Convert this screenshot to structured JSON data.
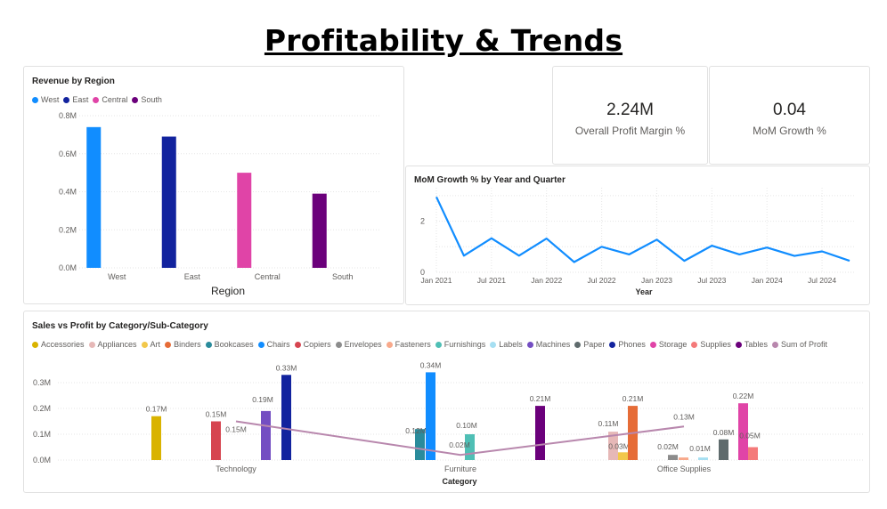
{
  "page": {
    "title": "Profitability & Trends"
  },
  "kpi": [
    {
      "value": "2.24M",
      "label": "Overall Profit Margin %"
    },
    {
      "value": "0.04",
      "label": "MoM Growth %"
    }
  ],
  "chart_data": [
    {
      "id": "region",
      "type": "bar",
      "title": "Revenue by Region",
      "xlabel": "Region",
      "ylabel": "",
      "categories": [
        "West",
        "East",
        "Central",
        "South"
      ],
      "legend": [
        {
          "name": "West",
          "color": "#118dff"
        },
        {
          "name": "East",
          "color": "#12239e"
        },
        {
          "name": "Central",
          "color": "#e044a7"
        },
        {
          "name": "South",
          "color": "#6b007b"
        }
      ],
      "series": [
        {
          "name": "West",
          "values": [
            0.74,
            null,
            null,
            null
          ]
        },
        {
          "name": "East",
          "values": [
            null,
            0.69,
            null,
            null
          ]
        },
        {
          "name": "Central",
          "values": [
            null,
            null,
            0.5,
            null
          ]
        },
        {
          "name": "South",
          "values": [
            null,
            null,
            null,
            0.39
          ]
        }
      ],
      "ylim": [
        0,
        0.8
      ],
      "yticks": [
        "0.0M",
        "0.2M",
        "0.4M",
        "0.6M",
        "0.8M"
      ],
      "grid": true
    },
    {
      "id": "mom",
      "type": "line",
      "title": "MoM Growth % by Year and Quarter",
      "xlabel": "Year",
      "ylabel": "",
      "xticks": [
        "Jan 2021",
        "Jul 2021",
        "Jan 2022",
        "Jul 2022",
        "Jan 2023",
        "Jul 2023",
        "Jan 2024",
        "Jul 2024"
      ],
      "x": [
        "2021 Q1",
        "2021 Q2",
        "2021 Q3",
        "2021 Q4",
        "2022 Q1",
        "2022 Q2",
        "2022 Q3",
        "2022 Q4",
        "2023 Q1",
        "2023 Q2",
        "2023 Q3",
        "2023 Q4",
        "2024 Q1",
        "2024 Q2",
        "2024 Q3",
        "2024 Q4"
      ],
      "series": [
        {
          "color": "#118dff",
          "values": [
            2.95,
            0.65,
            1.33,
            0.65,
            1.32,
            0.4,
            1.0,
            0.7,
            1.28,
            0.45,
            1.04,
            0.7,
            0.97,
            0.64,
            0.82,
            0.45
          ]
        }
      ],
      "ylim": [
        0,
        3.1
      ],
      "yticks": [
        "0",
        "2"
      ],
      "grid": true
    },
    {
      "id": "category",
      "type": "bar",
      "title": "Sales vs Profit by Category/Sub-Category",
      "xlabel": "Category",
      "ylabel": "",
      "categories": [
        "Technology",
        "Furniture",
        "Office Supplies"
      ],
      "legend": [
        {
          "name": "Accessories",
          "color": "#d9b300"
        },
        {
          "name": "Appliances",
          "color": "#e6b8b7"
        },
        {
          "name": "Art",
          "color": "#f2c84b"
        },
        {
          "name": "Binders",
          "color": "#e66c37"
        },
        {
          "name": "Bookcases",
          "color": "#2a8b9b"
        },
        {
          "name": "Chairs",
          "color": "#118dff"
        },
        {
          "name": "Copiers",
          "color": "#d64550"
        },
        {
          "name": "Envelopes",
          "color": "#8c8c8c"
        },
        {
          "name": "Fasteners",
          "color": "#f8a98b"
        },
        {
          "name": "Furnishings",
          "color": "#4fbfb5"
        },
        {
          "name": "Labels",
          "color": "#a6dff2"
        },
        {
          "name": "Machines",
          "color": "#744ec2"
        },
        {
          "name": "Paper",
          "color": "#5f6b6d"
        },
        {
          "name": "Phones",
          "color": "#12239e"
        },
        {
          "name": "Storage",
          "color": "#e044a7"
        },
        {
          "name": "Supplies",
          "color": "#f47a7a"
        },
        {
          "name": "Tables",
          "color": "#6b007b"
        },
        {
          "name": "Sum of Profit",
          "color": "#b887ad"
        }
      ],
      "bars": [
        {
          "category": "Technology",
          "sub": "Accessories",
          "value": 0.17,
          "label": "0.17M"
        },
        {
          "category": "Technology",
          "sub": "Copiers",
          "value": 0.15,
          "label": "0.15M"
        },
        {
          "category": "Technology",
          "sub": "Machines",
          "value": 0.19,
          "label": "0.19M"
        },
        {
          "category": "Technology",
          "sub": "Phones",
          "value": 0.33,
          "label": "0.33M"
        },
        {
          "category": "Furniture",
          "sub": "Bookcases",
          "value": 0.12,
          "label": "0.12M"
        },
        {
          "category": "Furniture",
          "sub": "Chairs",
          "value": 0.34,
          "label": "0.34M"
        },
        {
          "category": "Furniture",
          "sub": "Furnishings",
          "value": 0.1,
          "label": "0.10M"
        },
        {
          "category": "Furniture",
          "sub": "Tables",
          "value": 0.21,
          "label": "0.21M"
        },
        {
          "category": "Office Supplies",
          "sub": "Appliances",
          "value": 0.11,
          "label": "0.11M"
        },
        {
          "category": "Office Supplies",
          "sub": "Art",
          "value": 0.03,
          "label": "0.03M"
        },
        {
          "category": "Office Supplies",
          "sub": "Binders",
          "value": 0.21,
          "label": "0.21M"
        },
        {
          "category": "Office Supplies",
          "sub": "Envelopes",
          "value": 0.02,
          "label": "0.02M"
        },
        {
          "category": "Office Supplies",
          "sub": "Fasteners",
          "value": 0.01,
          "label": ""
        },
        {
          "category": "Office Supplies",
          "sub": "Labels",
          "value": 0.01,
          "label": "0.01M"
        },
        {
          "category": "Office Supplies",
          "sub": "Paper",
          "value": 0.08,
          "label": "0.08M"
        },
        {
          "category": "Office Supplies",
          "sub": "Storage",
          "value": 0.22,
          "label": "0.22M"
        },
        {
          "category": "Office Supplies",
          "sub": "Supplies",
          "value": 0.05,
          "label": "0.05M"
        }
      ],
      "line": {
        "name": "Sum of Profit",
        "values": [
          0.15,
          0.02,
          0.13
        ],
        "labels": [
          "0.15M",
          "0.02M",
          "0.13M"
        ]
      },
      "ylim": [
        0,
        0.35
      ],
      "yticks": [
        "0.0M",
        "0.1M",
        "0.2M",
        "0.3M"
      ],
      "grid": true
    }
  ]
}
